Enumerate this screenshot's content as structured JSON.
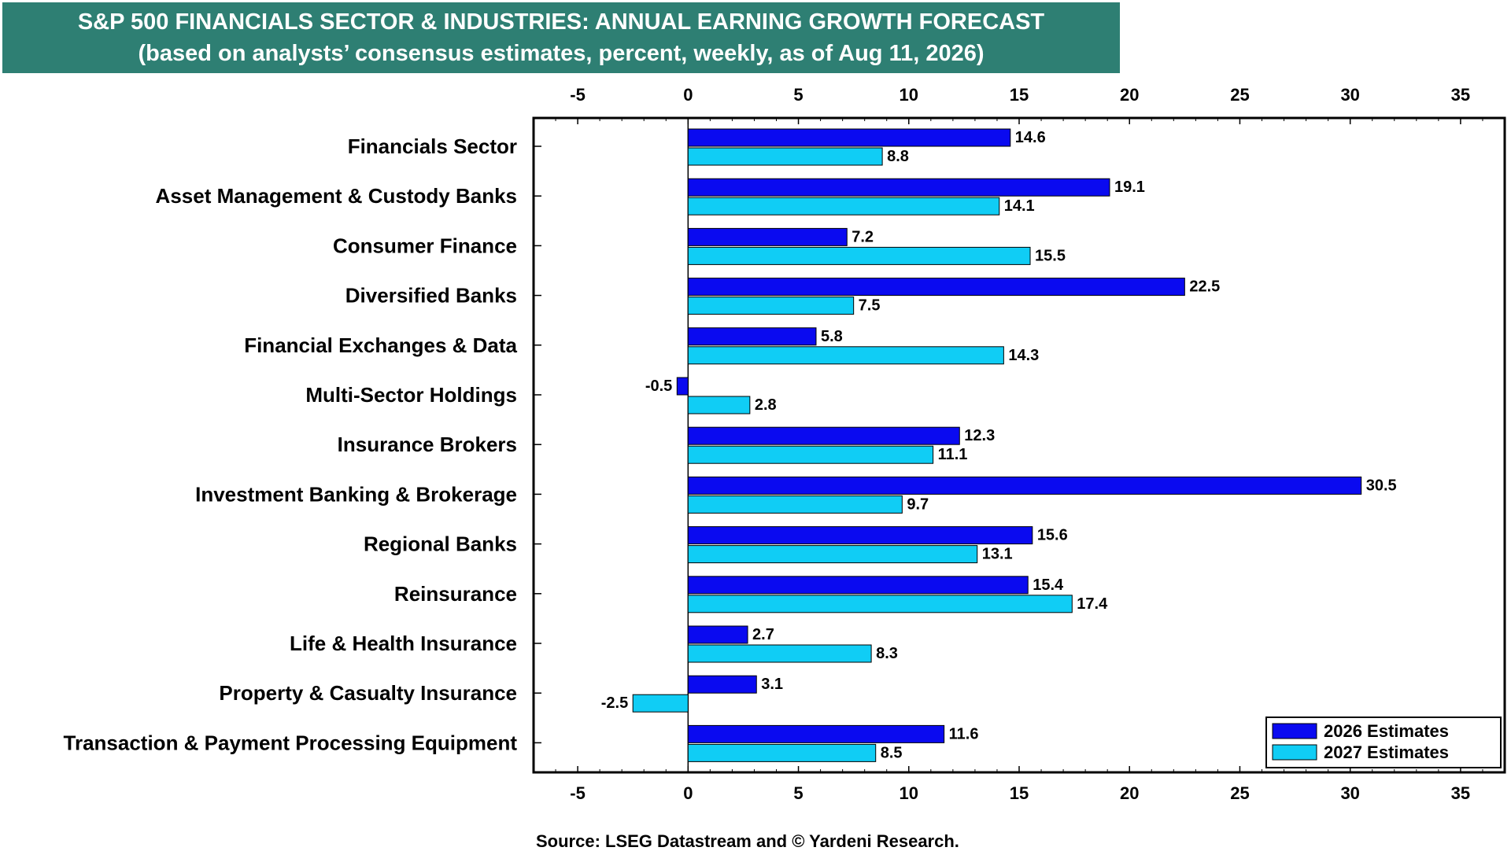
{
  "title": "S&P 500 FINANCIALS SECTOR & INDUSTRIES: ANNUAL EARNING GROWTH FORECAST",
  "subtitle": "(based on analysts’ consensus estimates, percent, weekly, as of Aug 11, 2026)",
  "source": "Source: LSEG Datastream and © Yardeni Research.",
  "colors": {
    "header_bg": "#2e7f73",
    "series_2026": "#0a0af0",
    "series_2027": "#10cdf5"
  },
  "chart_data": {
    "type": "bar",
    "orientation": "horizontal",
    "categories": [
      "Financials Sector",
      "Asset Management & Custody Banks",
      "Consumer Finance",
      "Diversified Banks",
      "Financial Exchanges & Data",
      "Multi-Sector Holdings",
      "Insurance Brokers",
      "Investment Banking & Brokerage",
      "Regional Banks",
      "Reinsurance",
      "Life & Health Insurance",
      "Property & Casualty Insurance",
      "Transaction & Payment Processing Equipment"
    ],
    "series": [
      {
        "name": "2026 Estimates",
        "values": [
          14.6,
          19.1,
          7.2,
          22.5,
          5.8,
          -0.5,
          12.3,
          30.5,
          15.6,
          15.4,
          2.7,
          3.1,
          11.6
        ],
        "labels": [
          "14.6",
          "19.1",
          "7.2",
          "22.5",
          "5.8",
          "-0.5",
          "12.3",
          "30.5",
          "15.6",
          "15.4",
          "2.7",
          "3.1",
          "11.6"
        ]
      },
      {
        "name": "2027 Estimates",
        "values": [
          8.8,
          14.1,
          15.5,
          7.5,
          14.3,
          2.8,
          11.1,
          9.7,
          13.1,
          17.4,
          8.3,
          -2.5,
          8.5
        ],
        "labels": [
          "8.8",
          "14.1",
          "15.5",
          "7.5",
          "14.3",
          "2.8",
          "11.1",
          "9.7",
          "13.1",
          "17.4",
          "8.3",
          "-2.5",
          "8.5"
        ]
      }
    ],
    "xlim": [
      -7,
      37
    ],
    "xticks": [
      "-5",
      "0",
      "5",
      "10",
      "15",
      "20",
      "25",
      "30",
      "35"
    ],
    "legend": "bottom-right",
    "grid": false
  }
}
